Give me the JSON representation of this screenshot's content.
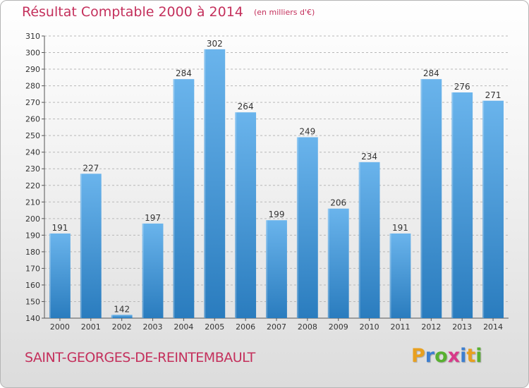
{
  "header": {
    "title": "Résultat Comptable 2000 à 2014",
    "unit": "(en milliers d'€)"
  },
  "footer": {
    "commune": "SAINT-GEORGES-DE-REINTEMBAULT",
    "logo_letters": [
      "P",
      "r",
      "o",
      "x",
      "i",
      "t",
      "i"
    ],
    "logo_colors": [
      "#e8a020",
      "#3d7fd0",
      "#58b030",
      "#d83a8a",
      "#3d7fd0",
      "#e8a020",
      "#58b030"
    ]
  },
  "chart_data": {
    "type": "bar",
    "categories": [
      "2000",
      "2001",
      "2002",
      "2003",
      "2004",
      "2005",
      "2006",
      "2007",
      "2008",
      "2009",
      "2010",
      "2011",
      "2012",
      "2013",
      "2014"
    ],
    "values": [
      191,
      227,
      142,
      197,
      284,
      302,
      264,
      199,
      249,
      206,
      234,
      191,
      284,
      276,
      271
    ],
    "ylim": [
      140,
      310
    ],
    "yticks": [
      140,
      150,
      160,
      170,
      180,
      190,
      200,
      210,
      220,
      230,
      240,
      250,
      260,
      270,
      280,
      290,
      300,
      310
    ],
    "grid": true,
    "colors": {
      "bar_top": "#6ab4ec",
      "bar_bottom": "#2a7cbe",
      "grid": "#b8b8b8",
      "label": "#333333"
    }
  }
}
